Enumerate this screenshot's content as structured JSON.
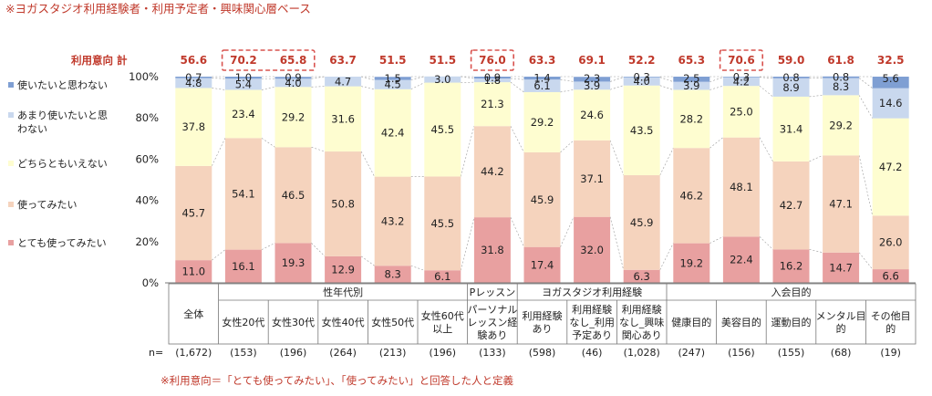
{
  "chart_data": {
    "type": "stacked-bar-100",
    "title": "※ヨガスタジオ利用経験者・利用予定者・興味関心層ベース",
    "intent_label": "利用意向 計",
    "footnote": "※利用意向＝「とても使ってみたい」、「使ってみたい」と回答した人と定義",
    "n_label": "n=",
    "y_ticks": [
      "100%",
      "80%",
      "60%",
      "40%",
      "20%",
      "0%"
    ],
    "ylim": [
      0,
      100
    ],
    "series": [
      {
        "name": "とても使ってみたい",
        "color": "#e8a0a0",
        "values": [
          11.0,
          16.1,
          19.3,
          12.9,
          8.3,
          6.1,
          31.8,
          17.4,
          32.0,
          6.3,
          19.2,
          22.4,
          16.2,
          14.7,
          6.6
        ]
      },
      {
        "name": "使ってみたい",
        "color": "#f5d3bd",
        "values": [
          45.7,
          54.1,
          46.5,
          50.8,
          43.2,
          45.5,
          44.2,
          45.9,
          37.1,
          45.9,
          46.2,
          48.1,
          42.7,
          47.1,
          26.0
        ]
      },
      {
        "name": "どちらともいえない",
        "color": "#fefdd0",
        "values": [
          37.8,
          23.4,
          29.2,
          31.6,
          42.4,
          45.5,
          21.3,
          29.2,
          24.6,
          43.5,
          28.2,
          25.0,
          31.4,
          29.2,
          47.2
        ]
      },
      {
        "name": "あまり使いたいと思わない",
        "color": "#c9d8ee",
        "values": [
          4.8,
          5.4,
          4.0,
          4.7,
          4.5,
          3.0,
          1.8,
          6.1,
          3.9,
          4.0,
          3.9,
          4.2,
          8.9,
          8.3,
          14.6
        ]
      },
      {
        "name": "使いたいと思わない",
        "color": "#7f9fd3",
        "values": [
          0.7,
          1.0,
          0.9,
          0.0,
          1.5,
          0.0,
          0.9,
          1.4,
          2.3,
          0.3,
          2.5,
          0.3,
          0.8,
          0.8,
          5.6
        ]
      }
    ],
    "legend": [
      "使いたいと思わない",
      "あまり使いたいと思わない",
      "どちらともいえない",
      "使ってみたい",
      "とても使ってみたい"
    ],
    "series_labels": [
      [
        "11.0",
        "16.1",
        "19.3",
        "12.9",
        "8.3",
        "6.1",
        "31.8",
        "17.4",
        "32.0",
        "6.3",
        "19.2",
        "22.4",
        "16.2",
        "14.7",
        "6.6"
      ],
      [
        "45.7",
        "54.1",
        "46.5",
        "50.8",
        "43.2",
        "45.5",
        "44.2",
        "45.9",
        "37.1",
        "45.9",
        "46.2",
        "48.1",
        "42.7",
        "47.1",
        "26.0"
      ],
      [
        "37.8",
        "23.4",
        "29.2",
        "31.6",
        "42.4",
        "45.5",
        "21.3",
        "29.2",
        "24.6",
        "43.5",
        "28.2",
        "25.0",
        "31.4",
        "29.2",
        "47.2"
      ],
      [
        "4.8",
        "5.4",
        "4.0",
        "4.7",
        "4.5",
        "3.0",
        "1.8",
        "6.1",
        "3.9",
        "4.0",
        "3.9",
        "4.2",
        "8.9",
        "8.3",
        "14.6"
      ],
      [
        "0.7",
        "1.0",
        "0.9",
        "",
        "1.5",
        "",
        "0.9",
        "1.4",
        "2.3",
        "0.3",
        "2.5",
        "0.3",
        "0.8",
        "0.8",
        "5.6"
      ]
    ],
    "intent_totals": [
      "56.6",
      "70.2",
      "65.8",
      "63.7",
      "51.5",
      "51.5",
      "76.0",
      "63.3",
      "69.1",
      "52.2",
      "65.3",
      "70.6",
      "59.0",
      "61.8",
      "32.5"
    ],
    "highlighted_totals": [
      1,
      2,
      6,
      11
    ],
    "groups": [
      {
        "label": "",
        "start": 0,
        "count": 1
      },
      {
        "label": "性年代別",
        "start": 1,
        "count": 5
      },
      {
        "label": "Pレッスン",
        "start": 6,
        "count": 1
      },
      {
        "label": "ヨガスタジオ利用経験",
        "start": 7,
        "count": 3
      },
      {
        "label": "入会目的",
        "start": 10,
        "count": 5
      }
    ],
    "categories": [
      [
        "全体"
      ],
      [
        "女性20代"
      ],
      [
        "女性30代"
      ],
      [
        "女性40代"
      ],
      [
        "女性50代"
      ],
      [
        "女性60代",
        "以上"
      ],
      [
        "パーソナル",
        "レッスン経",
        "験あり"
      ],
      [
        "利用経験",
        "あり"
      ],
      [
        "利用経験",
        "なし_利用",
        "予定あり"
      ],
      [
        "利用経験",
        "なし_興味",
        "関心あり"
      ],
      [
        "健康目的"
      ],
      [
        "美容目的"
      ],
      [
        "運動目的"
      ],
      [
        "メンタル目",
        "的"
      ],
      [
        "その他目",
        "的"
      ]
    ],
    "n_values": [
      "(1,672)",
      "(153)",
      "(196)",
      "(264)",
      "(213)",
      "(196)",
      "(133)",
      "(598)",
      "(46)",
      "(1,028)",
      "(247)",
      "(156)",
      "(155)",
      "(68)",
      "(19)"
    ]
  }
}
